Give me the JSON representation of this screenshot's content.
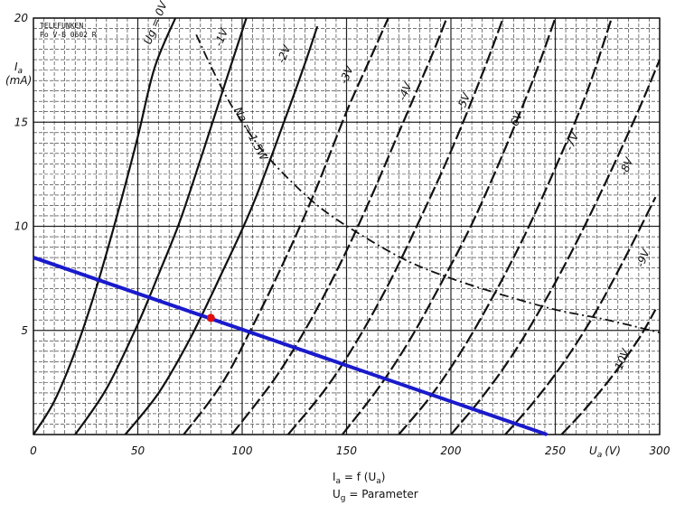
{
  "chart_data": {
    "type": "line",
    "brand": "TELEFUNKEN",
    "ref": "Po V-B 0602 R",
    "xlabel": "U_a (V)",
    "xlabel_main": "U",
    "xlabel_sub": "a",
    "xlabel_unit": "(V)",
    "ylabel_main": "I",
    "ylabel_sub": "a",
    "ylabel_unit": "(mA)",
    "xlim": [
      0,
      300
    ],
    "ylim": [
      0,
      20
    ],
    "xticks": [
      0,
      50,
      100,
      150,
      200,
      250,
      300
    ],
    "yticks": [
      5,
      10,
      15,
      20
    ],
    "grid": true,
    "caption_line1": "I_a = f (U_a)",
    "caption_line2": "U_g = Parameter",
    "curves": [
      {
        "label": "U_g = 0V",
        "x": [
          0,
          10,
          20,
          30,
          40,
          50,
          58,
          68
        ],
        "y": [
          0,
          1.6,
          4.0,
          7.0,
          10.5,
          14.3,
          17.6,
          20.0
        ]
      },
      {
        "label": "-1V",
        "x": [
          20,
          35,
          50,
          60,
          70,
          80,
          90,
          102
        ],
        "y": [
          0,
          2.2,
          5.3,
          7.7,
          10.2,
          13.2,
          16.3,
          20.0
        ]
      },
      {
        "label": "-2V",
        "x": [
          44,
          60,
          75,
          90,
          105,
          120,
          130,
          136
        ],
        "y": [
          0,
          2.0,
          4.6,
          7.7,
          11.0,
          15.0,
          17.8,
          19.6
        ]
      },
      {
        "label": "-3V",
        "x": [
          72,
          90,
          105,
          120,
          135,
          150,
          162,
          170
        ],
        "y": [
          0,
          2.4,
          5.2,
          8.3,
          11.7,
          15.5,
          18.2,
          20.0
        ]
      },
      {
        "label": "-4V",
        "x": [
          95,
          115,
          130,
          145,
          160,
          175,
          190,
          198
        ],
        "y": [
          0,
          2.6,
          5.0,
          7.8,
          11.0,
          14.5,
          18.0,
          20.0
        ]
      },
      {
        "label": "-5V",
        "x": [
          122,
          140,
          155,
          170,
          185,
          200,
          215,
          225
        ],
        "y": [
          0,
          2.2,
          4.5,
          7.2,
          10.3,
          13.6,
          17.3,
          20.0
        ]
      },
      {
        "label": "-6V",
        "x": [
          148,
          165,
          180,
          195,
          210,
          225,
          240,
          250
        ],
        "y": [
          0,
          2.2,
          4.5,
          7.2,
          10.1,
          13.5,
          17.2,
          20.0
        ]
      },
      {
        "label": "-7V",
        "x": [
          175,
          190,
          205,
          220,
          235,
          250,
          265,
          277
        ],
        "y": [
          0,
          1.8,
          4.0,
          6.6,
          9.5,
          12.8,
          16.4,
          20.0
        ]
      },
      {
        "label": "-8V",
        "x": [
          200,
          215,
          230,
          245,
          260,
          275,
          290,
          300
        ],
        "y": [
          0,
          1.8,
          3.9,
          6.4,
          9.2,
          12.3,
          15.6,
          18.0
        ]
      },
      {
        "label": "-9V",
        "x": [
          226,
          240,
          255,
          270,
          285,
          298
        ],
        "y": [
          0,
          1.6,
          3.6,
          6.0,
          8.8,
          11.4
        ]
      },
      {
        "label": "-10V",
        "x": [
          253,
          265,
          278,
          290,
          298
        ],
        "y": [
          0,
          1.3,
          2.9,
          4.6,
          6.0
        ]
      }
    ],
    "curve_label_positions": [
      {
        "label": "-1V",
        "x": 90,
        "y": 18.6
      },
      {
        "label": "-2V",
        "x": 120,
        "y": 17.8
      },
      {
        "label": "-3V",
        "x": 150,
        "y": 16.8
      },
      {
        "label": "-4V",
        "x": 178,
        "y": 16.0
      },
      {
        "label": "-5V",
        "x": 206,
        "y": 15.5
      },
      {
        "label": "-6V",
        "x": 231,
        "y": 14.6
      },
      {
        "label": "-7V",
        "x": 258,
        "y": 13.6
      },
      {
        "label": "-8V",
        "x": 284,
        "y": 12.4
      },
      {
        "label": "-9V",
        "x": 292,
        "y": 8.0
      },
      {
        "label": "-10V",
        "x": 281,
        "y": 2.9
      }
    ],
    "ug0_label_pos": {
      "x": 56,
      "y": 18.7
    },
    "power_curve": {
      "label": "Na = 1.5W",
      "label_pos": {
        "x": 96,
        "y": 15.6
      },
      "x": [
        78,
        84,
        92,
        100,
        110,
        125,
        140,
        160,
        180,
        200,
        225,
        250,
        275,
        300
      ],
      "y": [
        19.2,
        17.9,
        16.3,
        15.0,
        13.6,
        12.0,
        10.7,
        9.4,
        8.3,
        7.5,
        6.7,
        6.0,
        5.5,
        4.9
      ]
    },
    "load_line": {
      "x": [
        0,
        246
      ],
      "y": [
        8.5,
        0
      ],
      "color": "#1a1acc"
    },
    "operating_point": {
      "x": 85,
      "y": 5.6,
      "color": "#e01010"
    }
  }
}
